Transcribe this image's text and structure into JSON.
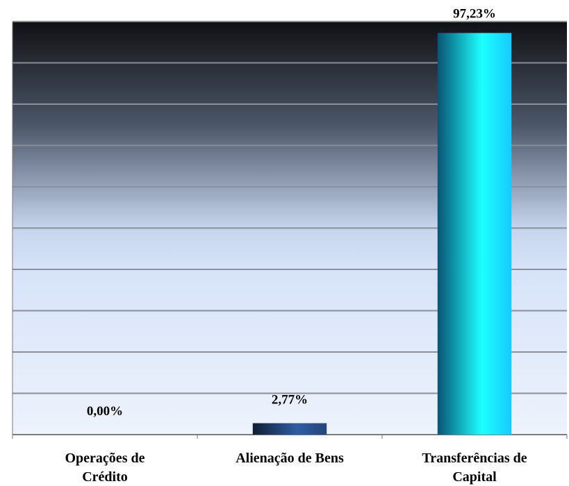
{
  "chart_data": {
    "type": "bar",
    "categories": [
      "Operações de\nCrédito",
      "Alienação de Bens",
      "Transferências de\nCapital"
    ],
    "values": [
      0,
      2.77,
      97.23
    ],
    "value_labels": [
      "0,00%",
      "2,77%",
      "97,23%"
    ],
    "colors": [
      "#1e3a66",
      "#1e3a66",
      "#12a8e6"
    ],
    "ylim": [
      0,
      100
    ],
    "yticks": [
      0,
      10,
      20,
      30,
      40,
      50,
      60,
      70,
      80,
      90,
      100
    ],
    "grid": true
  }
}
